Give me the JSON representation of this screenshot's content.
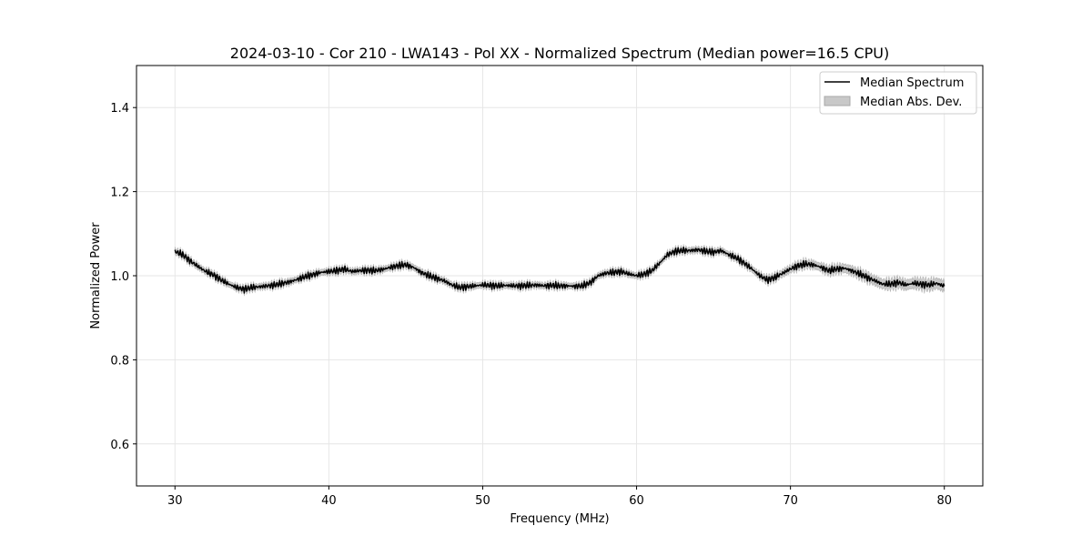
{
  "chart_data": {
    "type": "line",
    "title": "2024-03-10 - Cor 210 - LWA143 - Pol XX - Normalized Spectrum (Median power=16.5 CPU)",
    "xlabel": "Frequency (MHz)",
    "ylabel": "Normalized Power",
    "xlim": [
      27.5,
      82.5
    ],
    "ylim": [
      0.5,
      1.5
    ],
    "xticks": [
      30,
      40,
      50,
      60,
      70,
      80
    ],
    "yticks": [
      0.6,
      0.8,
      1.0,
      1.2,
      1.4
    ],
    "xtick_labels": [
      "30",
      "40",
      "50",
      "60",
      "70",
      "80"
    ],
    "ytick_labels": [
      "0.6",
      "0.8",
      "1.0",
      "1.2",
      "1.4"
    ],
    "grid": true,
    "legend_position": "top-right",
    "legend": [
      "Median Spectrum",
      "Median Abs. Dev."
    ],
    "series": [
      {
        "name": "Median Spectrum",
        "color": "#000000",
        "x": [
          30.0,
          30.5,
          31.0,
          31.5,
          32.0,
          32.5,
          33.0,
          33.5,
          34.0,
          34.5,
          35.0,
          35.5,
          36.0,
          36.5,
          37.0,
          37.5,
          38.0,
          38.5,
          39.0,
          39.5,
          40.0,
          40.5,
          41.0,
          41.5,
          42.0,
          42.5,
          43.0,
          43.5,
          44.0,
          44.5,
          45.0,
          45.5,
          46.0,
          46.5,
          47.0,
          47.5,
          48.0,
          48.5,
          49.0,
          49.5,
          50.0,
          50.5,
          51.0,
          51.5,
          52.0,
          52.5,
          53.0,
          53.5,
          54.0,
          54.5,
          55.0,
          55.5,
          56.0,
          56.5,
          57.0,
          57.5,
          58.0,
          58.5,
          59.0,
          59.5,
          60.0,
          60.5,
          61.0,
          61.5,
          62.0,
          62.5,
          63.0,
          63.5,
          64.0,
          64.5,
          65.0,
          65.5,
          66.0,
          66.5,
          67.0,
          67.5,
          68.0,
          68.5,
          69.0,
          69.5,
          70.0,
          70.5,
          71.0,
          71.5,
          72.0,
          72.5,
          73.0,
          73.5,
          74.0,
          74.5,
          75.0,
          75.5,
          76.0,
          76.5,
          77.0,
          77.5,
          78.0,
          78.5,
          79.0,
          79.5,
          80.0
        ],
        "y": [
          1.058,
          1.05,
          1.035,
          1.022,
          1.01,
          1.002,
          0.99,
          0.98,
          0.972,
          0.968,
          0.972,
          0.974,
          0.976,
          0.978,
          0.982,
          0.986,
          0.992,
          0.998,
          1.003,
          1.008,
          1.01,
          1.012,
          1.016,
          1.01,
          1.012,
          1.013,
          1.012,
          1.015,
          1.02,
          1.024,
          1.026,
          1.02,
          1.008,
          1.0,
          0.994,
          0.988,
          0.978,
          0.972,
          0.974,
          0.976,
          0.978,
          0.977,
          0.976,
          0.977,
          0.976,
          0.976,
          0.977,
          0.978,
          0.976,
          0.977,
          0.976,
          0.976,
          0.975,
          0.976,
          0.984,
          1.0,
          1.006,
          1.008,
          1.01,
          1.004,
          1.0,
          1.004,
          1.012,
          1.03,
          1.05,
          1.058,
          1.06,
          1.06,
          1.062,
          1.058,
          1.056,
          1.06,
          1.05,
          1.042,
          1.03,
          1.016,
          1.0,
          0.99,
          0.996,
          1.006,
          1.016,
          1.024,
          1.028,
          1.026,
          1.02,
          1.012,
          1.016,
          1.018,
          1.012,
          1.004,
          0.996,
          0.988,
          0.98,
          0.98,
          0.984,
          0.978,
          0.982,
          0.98,
          0.978,
          0.982,
          0.975
        ]
      },
      {
        "name": "Median Abs. Dev.",
        "color": "#c8c8c8",
        "kind": "band",
        "mad": 0.007
      }
    ]
  }
}
